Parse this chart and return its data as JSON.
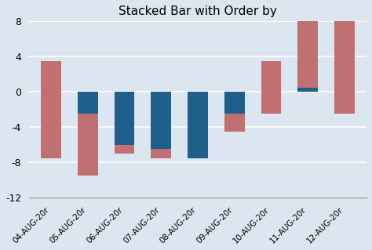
{
  "categories": [
    "04-AUG-20r",
    "05-AUG-20r",
    "06-AUG-20r",
    "07-AUG-20r",
    "08-AUG-20r",
    "09-AUG-20r",
    "10-AUG-20r",
    "11-AUG-20r",
    "12-AUG-20r"
  ],
  "blue_bottoms": [
    0,
    0,
    0,
    0,
    0,
    0,
    0,
    0,
    0
  ],
  "blue_heights": [
    -7.5,
    -9.5,
    -7.0,
    -7.5,
    -7.5,
    -4.5,
    -2.5,
    0.5,
    -2.5
  ],
  "pink_bottoms": [
    -7.5,
    -9.5,
    -7.0,
    -7.5,
    -7.5,
    -4.5,
    -2.5,
    0.5,
    -2.5
  ],
  "pink_heights": [
    11.0,
    7.0,
    1.0,
    1.0,
    0.0,
    2.0,
    6.0,
    7.5,
    10.5
  ],
  "blue_color": "#1f5f8b",
  "pink_color": "#c07070",
  "title": "Stacked Bar with Order by",
  "ylim": [
    -12,
    8
  ],
  "yticks": [
    -12,
    -8,
    -4,
    0,
    4,
    8
  ],
  "background_color": "#dce6f1",
  "plot_bg_color": "#dce6f1",
  "grid_color": "#ffffff",
  "title_fontsize": 11,
  "bar_width": 0.55
}
